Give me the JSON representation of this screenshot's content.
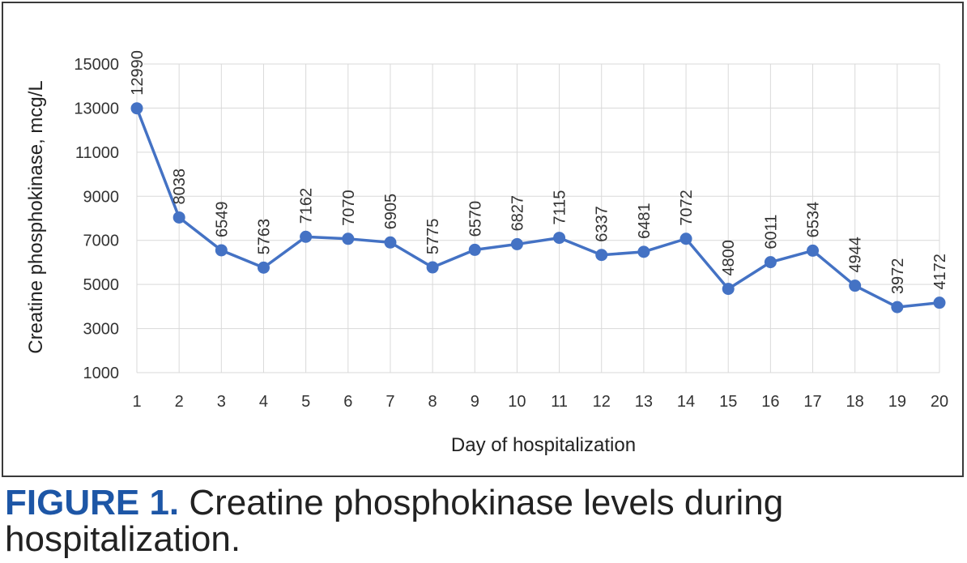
{
  "chart_data": {
    "type": "line",
    "xlabel": "Day of hospitalization",
    "ylabel": "Creatine phosphokinase, mcg/L",
    "x": [
      1,
      2,
      3,
      4,
      5,
      6,
      7,
      8,
      9,
      10,
      11,
      12,
      13,
      14,
      15,
      16,
      17,
      18,
      19,
      20
    ],
    "series": [
      {
        "name": "Creatine phosphokinase",
        "values": [
          12990,
          8038,
          6549,
          5763,
          7162,
          7070,
          6905,
          5775,
          6570,
          6827,
          7115,
          6337,
          6481,
          7072,
          4800,
          6011,
          6534,
          4944,
          3972,
          4172
        ]
      }
    ],
    "ylim": [
      1000,
      15000
    ],
    "yticks": [
      1000,
      3000,
      5000,
      7000,
      9000,
      11000,
      13000,
      15000
    ],
    "grid": true,
    "line_color": "#4472c4",
    "grid_color": "#d9d9d9"
  },
  "caption": {
    "label": "FIGURE 1.",
    "text": " Creatine phosphokinase levels during hospitalization."
  }
}
